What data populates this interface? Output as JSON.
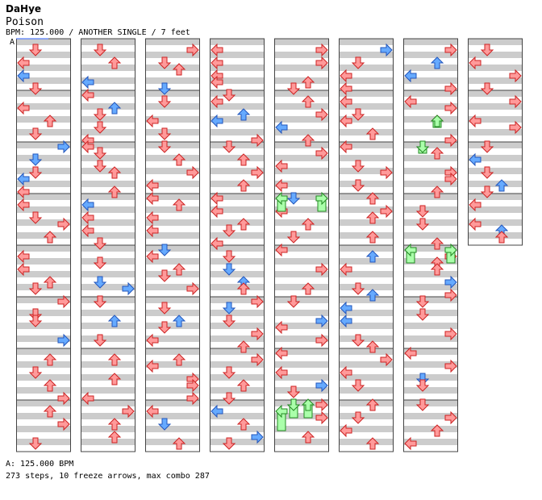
{
  "header": {
    "artist": "DaHye",
    "title": "Poison",
    "meta": "BPM: 125.000 / ANOTHER SINGLE / 7 feet",
    "marker": "A"
  },
  "footer": {
    "bpm": "A: 125.000 BPM",
    "stats": "273 steps, 10 freeze arrows, max combo 287"
  },
  "colors": {
    "quarter": "#ff9a9a",
    "eighth": "#66aaff",
    "freeze": "#aaffaa",
    "stripe": "#cccccc"
  }
}
